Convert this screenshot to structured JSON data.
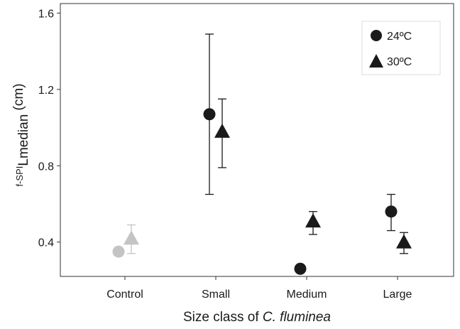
{
  "chart_data": {
    "type": "scatter",
    "categories": [
      "Control",
      "Small",
      "Medium",
      "Large"
    ],
    "ylabel_prefix": "f-SPI",
    "ylabel_sub": "L",
    "ylabel_subsub": "median",
    "ylabel_suffix": " (cm)",
    "xlabel_prefix": "Size class of ",
    "xlabel_italic": "C. fluminea",
    "ylim": [
      0.22,
      1.65
    ],
    "yticks": [
      0.4,
      0.8,
      1.2,
      1.6
    ],
    "ytick_labels": [
      "0.4",
      "0.8",
      "1.2",
      "1.6"
    ],
    "legend_position": "top-right",
    "series": [
      {
        "name": "24ºC",
        "marker": "circle",
        "color": "#1a1a1a",
        "points": [
          {
            "category": "Control",
            "y": 0.35,
            "err_low": null,
            "err_high": null,
            "color": "#c4c4c4"
          },
          {
            "category": "Small",
            "y": 1.07,
            "err_low": 0.65,
            "err_high": 1.49
          },
          {
            "category": "Medium",
            "y": 0.26,
            "err_low": null,
            "err_high": null
          },
          {
            "category": "Large",
            "y": 0.56,
            "err_low": 0.46,
            "err_high": 0.65
          }
        ]
      },
      {
        "name": "30ºC",
        "marker": "triangle",
        "color": "#1a1a1a",
        "points": [
          {
            "category": "Control",
            "y": 0.42,
            "err_low": 0.34,
            "err_high": 0.49,
            "color": "#c4c4c4"
          },
          {
            "category": "Small",
            "y": 0.98,
            "err_low": 0.79,
            "err_high": 1.15
          },
          {
            "category": "Medium",
            "y": 0.51,
            "err_low": 0.44,
            "err_high": 0.56
          },
          {
            "category": "Large",
            "y": 0.4,
            "err_low": 0.34,
            "err_high": 0.45
          }
        ]
      }
    ]
  }
}
